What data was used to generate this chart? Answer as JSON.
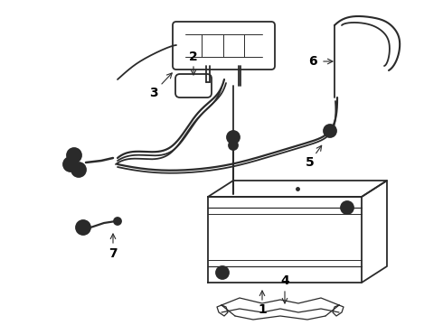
{
  "background_color": "#ffffff",
  "line_color": "#2a2a2a",
  "label_color": "#000000",
  "figsize": [
    4.9,
    3.6
  ],
  "dpi": 100,
  "lw": 1.3
}
